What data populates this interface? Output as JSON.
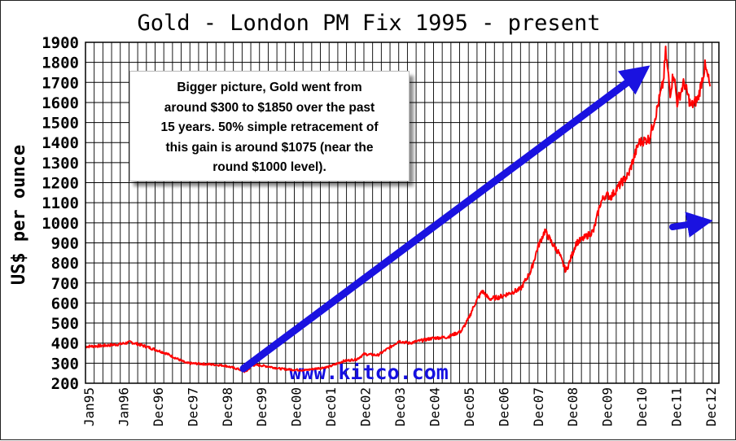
{
  "chart_data": {
    "type": "line",
    "title": "Gold - London PM Fix 1995 - present",
    "ylabel": "US$ per ounce",
    "xlabel": "",
    "ylim": [
      200,
      1900
    ],
    "yticks": [
      200,
      300,
      400,
      500,
      600,
      700,
      800,
      900,
      1000,
      1100,
      1200,
      1300,
      1400,
      1500,
      1600,
      1700,
      1800,
      1900
    ],
    "xtick_labels": [
      "Jan95",
      "Jan96",
      "Dec96",
      "Dec97",
      "Dec98",
      "Dec99",
      "Dec00",
      "Dec01",
      "Dec02",
      "Dec03",
      "Dec04",
      "Dec05",
      "Dec06",
      "Dec07",
      "Dec08",
      "Dec09",
      "Dec10",
      "Dec11",
      "Dec12"
    ],
    "grid": true,
    "line_color": "#ff0000",
    "watermark": "www.kitco.com",
    "series": [
      {
        "values_x": [
          1995.0,
          1995.5,
          1996.0,
          1996.3,
          1996.7,
          1997.0,
          1997.3,
          1997.6,
          1997.9,
          1998.3,
          1998.7,
          1999.0,
          1999.4,
          1999.6,
          1999.8,
          2000.0,
          2000.3,
          2000.6,
          2000.9,
          2001.3,
          2001.7,
          2002.0,
          2002.4,
          2002.8,
          2003.0,
          2003.4,
          2003.8,
          2004.0,
          2004.3,
          2004.7,
          2005.0,
          2005.4,
          2005.8,
          2006.0,
          2006.2,
          2006.4,
          2006.6,
          2006.9,
          2007.2,
          2007.5,
          2007.8,
          2008.0,
          2008.2,
          2008.4,
          2008.6,
          2008.8,
          2008.9,
          2009.1,
          2009.3,
          2009.6,
          2009.8,
          2009.95,
          2010.1,
          2010.4,
          2010.6,
          2010.9,
          2011.2,
          2011.4,
          2011.6,
          2011.67,
          2011.8,
          2011.9,
          2012.0,
          2012.2,
          2012.4,
          2012.6,
          2012.8,
          2012.95
        ],
        "values_y": [
          383,
          387,
          395,
          405,
          385,
          368,
          350,
          325,
          300,
          297,
          293,
          288,
          270,
          256,
          290,
          290,
          282,
          272,
          268,
          265,
          275,
          282,
          310,
          320,
          345,
          340,
          385,
          410,
          400,
          415,
          425,
          430,
          460,
          520,
          600,
          660,
          620,
          630,
          650,
          670,
          760,
          880,
          960,
          900,
          850,
          760,
          800,
          900,
          920,
          960,
          1100,
          1140,
          1130,
          1200,
          1240,
          1400,
          1420,
          1550,
          1700,
          1850,
          1650,
          1750,
          1600,
          1700,
          1580,
          1620,
          1780,
          1680
        ]
      }
    ]
  },
  "annotation": {
    "text": "Bigger picture, Gold went from\naround $300 to $1850 over the past\n15 years.  50% simple retracement of\nthis gain is around $1075 (near the\nround $1000 level)."
  },
  "arrows": {
    "color": "#1a12e0"
  }
}
